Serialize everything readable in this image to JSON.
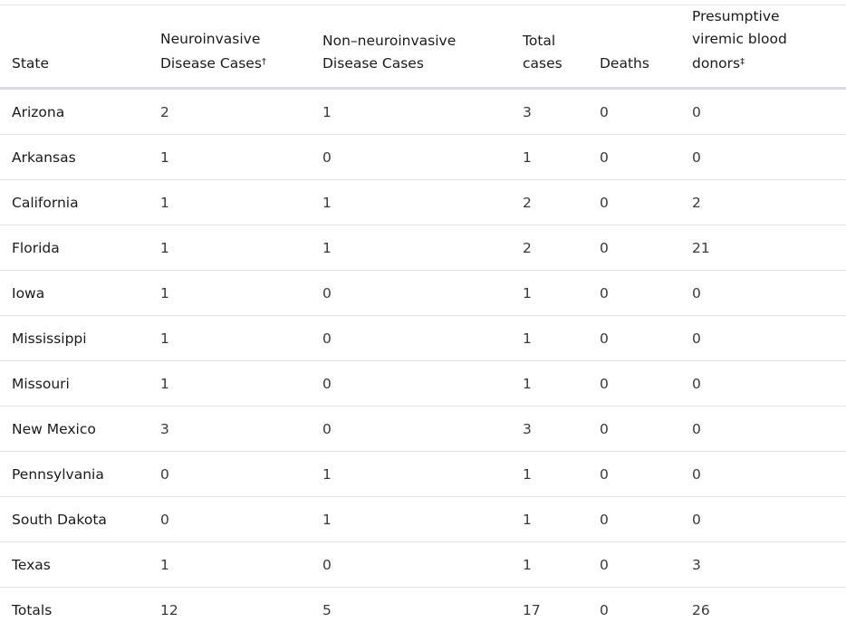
{
  "table": {
    "headers": [
      {
        "text": "State"
      },
      {
        "text": "Neuroinvasive Disease Cases",
        "mark": "†"
      },
      {
        "text": "Non–neuroinvasive Disease Cases"
      },
      {
        "text": "Total cases"
      },
      {
        "text": "Deaths"
      },
      {
        "text": "Presumptive viremic blood donors",
        "mark": "‡"
      }
    ],
    "rows": [
      [
        "Arizona",
        2,
        1,
        3,
        0,
        0
      ],
      [
        "Arkansas",
        1,
        0,
        1,
        0,
        0
      ],
      [
        "California",
        1,
        1,
        2,
        0,
        2
      ],
      [
        "Florida",
        1,
        1,
        2,
        0,
        21
      ],
      [
        "Iowa",
        1,
        0,
        1,
        0,
        0
      ],
      [
        "Mississippi",
        1,
        0,
        1,
        0,
        0
      ],
      [
        "Missouri",
        1,
        0,
        1,
        0,
        0
      ],
      [
        "New Mexico",
        3,
        0,
        3,
        0,
        0
      ],
      [
        "Pennsylvania",
        0,
        1,
        1,
        0,
        0
      ],
      [
        "South Dakota",
        0,
        1,
        1,
        0,
        0
      ],
      [
        "Texas",
        1,
        0,
        1,
        0,
        3
      ],
      [
        "Totals",
        12,
        5,
        17,
        0,
        26
      ]
    ]
  }
}
